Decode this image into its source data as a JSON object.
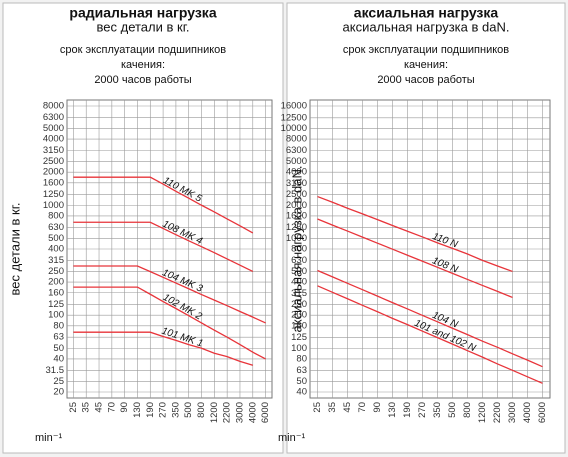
{
  "chart_data": [
    {
      "type": "line",
      "title": "радиальная нагрузка",
      "subtitle": "вес детали в кг.",
      "notes": [
        "срок эксплуатации подшипников",
        "качения:",
        "2000 часов работы"
      ],
      "y_label": "вес детали в кг.",
      "x_label": "min⁻¹",
      "log_y": true,
      "grid": true,
      "categories": [
        "25",
        "35",
        "45",
        "70",
        "90",
        "130",
        "190",
        "270",
        "350",
        "500",
        "800",
        "1200",
        "2200",
        "3000",
        "4000",
        "6000"
      ],
      "ylim": [
        20,
        8000
      ],
      "yticks": [
        8000,
        6300,
        5000,
        4000,
        3150,
        2500,
        2000,
        1600,
        1250,
        1000,
        800,
        630,
        500,
        400,
        315,
        250,
        200,
        160,
        125,
        100,
        80,
        63,
        50,
        40,
        31.5,
        25,
        20
      ],
      "series": [
        {
          "name": "110 MK 5",
          "color": "#e8343a",
          "values": [
            1800,
            1800,
            1800,
            1800,
            1800,
            1800,
            1800,
            1560,
            1340,
            1160,
            1000,
            870,
            750,
            650,
            560,
            null
          ]
        },
        {
          "name": "108 MK 4",
          "color": "#e8343a",
          "values": [
            700,
            700,
            700,
            700,
            700,
            700,
            700,
            615,
            540,
            475,
            420,
            370,
            325,
            285,
            250,
            null
          ]
        },
        {
          "name": "104 MK 3",
          "color": "#e8343a",
          "values": [
            280,
            280,
            280,
            280,
            280,
            280,
            249,
            221,
            196,
            174,
            154,
            137,
            122,
            108,
            96,
            85
          ]
        },
        {
          "name": "102 MK 2",
          "color": "#e8343a",
          "values": [
            180,
            180,
            180,
            180,
            180,
            180,
            155,
            133,
            115,
            99,
            85,
            73,
            63,
            54,
            46,
            40
          ]
        },
        {
          "name": "101 MK 1",
          "color": "#e8343a",
          "values": [
            70,
            70,
            70,
            70,
            70,
            70,
            70,
            64,
            59,
            54,
            50,
            45,
            42,
            38,
            35,
            null
          ]
        }
      ]
    },
    {
      "type": "line",
      "title": "аксиальная нагрузка",
      "subtitle": "аксиальная нагрузка в daN.",
      "notes": [
        "срок эксплуатации подшипников",
        "качения:",
        "2000 часов работы"
      ],
      "y_label": "аксиальная нагрузка в daN.",
      "x_label": "min⁻¹",
      "log_y": true,
      "grid": true,
      "categories": [
        "25",
        "35",
        "45",
        "70",
        "90",
        "130",
        "190",
        "270",
        "350",
        "500",
        "800",
        "1200",
        "2200",
        "3000",
        "4000",
        "6000"
      ],
      "ylim": [
        40,
        16000
      ],
      "yticks": [
        16000,
        12500,
        10000,
        8000,
        6300,
        5000,
        4000,
        3150,
        2500,
        2000,
        1600,
        1250,
        1000,
        800,
        630,
        500,
        400,
        315,
        250,
        200,
        160,
        125,
        100,
        80,
        63,
        50,
        40
      ],
      "series": [
        {
          "name": "110 N",
          "color": "#e8343a",
          "values": [
            2400,
            2130,
            1880,
            1670,
            1480,
            1310,
            1160,
            1030,
            910,
            810,
            720,
            630,
            560,
            500,
            null,
            null
          ]
        },
        {
          "name": "108 N",
          "color": "#e8343a",
          "values": [
            1500,
            1320,
            1165,
            1026,
            904,
            797,
            702,
            619,
            545,
            480,
            423,
            373,
            329,
            290,
            null,
            null
          ]
        },
        {
          "name": "104 N",
          "color": "#e8343a",
          "values": [
            510,
            446,
            390,
            341,
            298,
            260,
            228,
            199,
            174,
            152,
            133,
            116,
            102,
            89,
            78,
            68
          ]
        },
        {
          "name": "101 and 102 N",
          "color": "#e8343a",
          "values": [
            370,
            323,
            282,
            246,
            215,
            187,
            164,
            143,
            125,
            109,
            95,
            83,
            72,
            63,
            55,
            48
          ]
        }
      ]
    }
  ]
}
